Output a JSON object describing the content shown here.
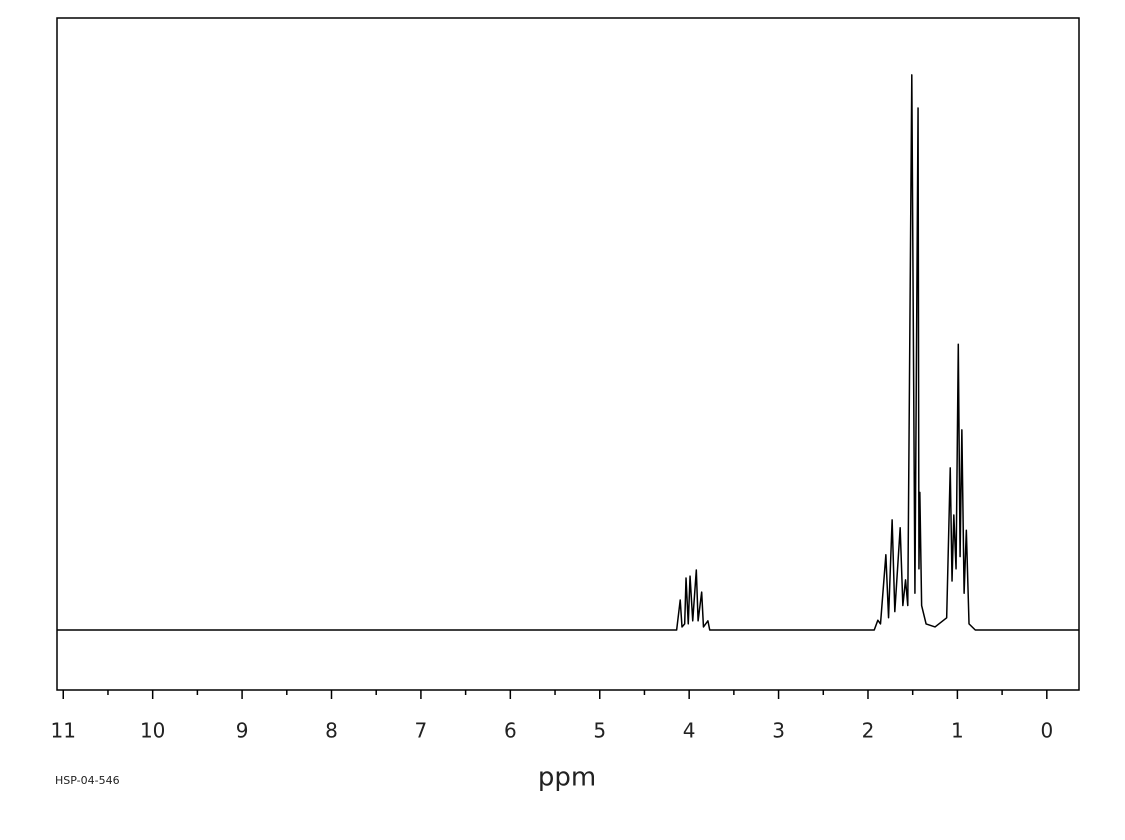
{
  "chart_data": {
    "type": "line",
    "xlabel": "ppm",
    "annotation": "HSP-04-546",
    "x": [
      11.07,
      4.14,
      4.1,
      4.08,
      4.05,
      4.035,
      4.01,
      3.99,
      3.96,
      3.92,
      3.9,
      3.86,
      3.84,
      3.79,
      3.77,
      1.93,
      1.89,
      1.86,
      1.8,
      1.77,
      1.73,
      1.7,
      1.64,
      1.61,
      1.58,
      1.555,
      1.51,
      1.475,
      1.44,
      1.43,
      1.42,
      1.4,
      1.35,
      1.25,
      1.12,
      1.08,
      1.06,
      1.04,
      1.015,
      0.99,
      0.97,
      0.95,
      0.925,
      0.9,
      0.87,
      0.8,
      -0.36
    ],
    "series": [
      {
        "color": "#000000",
        "values": [
          0,
          0,
          4.9,
          0.5,
          1,
          8.5,
          1,
          8.8,
          1.5,
          9.8,
          1.5,
          6.2,
          0.5,
          1.5,
          0,
          0,
          1.6,
          1,
          12.3,
          2,
          18,
          3,
          16.7,
          4,
          8.2,
          4,
          90.7,
          6,
          85.3,
          10,
          22.5,
          4,
          1,
          0.5,
          2,
          26.5,
          8,
          18.8,
          10,
          46.7,
          12,
          32.7,
          6,
          16.3,
          1,
          0,
          0
        ]
      }
    ],
    "xlim": [
      11.07,
      -0.36
    ],
    "ylim": [
      -9.8,
      100
    ],
    "xticks": [
      11,
      10,
      9,
      8,
      7,
      6,
      5,
      4,
      3,
      2,
      1,
      0
    ],
    "xminorticks": [
      10.5,
      9.5,
      8.5,
      7.5,
      6.5,
      5.5,
      4.5,
      3.5,
      2.5,
      1.5,
      0.5
    ]
  }
}
